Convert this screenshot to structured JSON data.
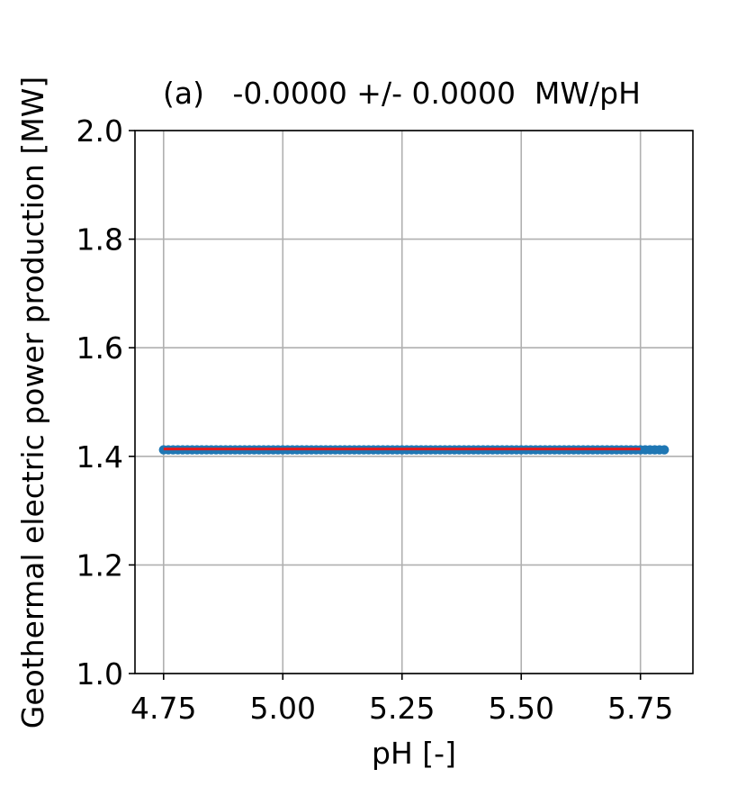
{
  "chart_data": {
    "type": "scatter",
    "title": "(a)   -0.0000 +/- 0.0000  MW/pH",
    "xlabel": "pH [-]",
    "ylabel": "Geothermal electric power production [MW]",
    "xlim": [
      4.69,
      5.86
    ],
    "ylim": [
      1.0,
      2.0
    ],
    "xticks": [
      4.75,
      5.0,
      5.25,
      5.5,
      5.75
    ],
    "xtick_labels": [
      "4.75",
      "5.00",
      "5.25",
      "5.50",
      "5.75"
    ],
    "yticks": [
      1.0,
      1.2,
      1.4,
      1.6,
      1.8,
      2.0
    ],
    "ytick_labels": [
      "1.0",
      "1.2",
      "1.4",
      "1.6",
      "1.8",
      "2.0"
    ],
    "grid": true,
    "series": [
      {
        "kind": "scatter",
        "x_range": [
          4.75,
          5.8
        ],
        "n_points": 106,
        "y": 1.412,
        "color": "#1f77b4"
      },
      {
        "kind": "fit_line",
        "x": [
          4.75,
          5.75
        ],
        "y": [
          1.412,
          1.412
        ],
        "color": "#e41a1c"
      }
    ]
  }
}
